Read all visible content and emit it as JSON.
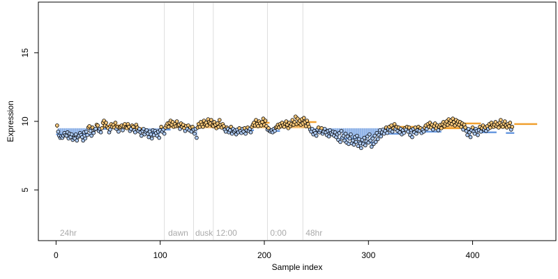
{
  "chart_data": {
    "type": "scatter",
    "xlabel": "Sample index",
    "ylabel": "Expression",
    "xlim": [
      -17,
      480
    ],
    "ylim": [
      1.3,
      18.7
    ],
    "x_ticks": [
      0,
      100,
      200,
      300,
      400
    ],
    "y_ticks": [
      5,
      10,
      15
    ],
    "baseline": 9.5,
    "colors": {
      "above": "#f0a030",
      "below": "#6a9ae0",
      "point_edge": "#000000",
      "divider": "#dddddd",
      "annotation": "#aaaaaa"
    },
    "dividers": [
      104,
      132,
      151,
      203,
      237
    ],
    "annotations": [
      {
        "label": "24hr",
        "x": 3
      },
      {
        "label": "dawn",
        "x": 107
      },
      {
        "label": "dusk",
        "x": 133
      },
      {
        "label": "12:00",
        "x": 153
      },
      {
        "label": "0:00",
        "x": 205
      },
      {
        "label": "48hr",
        "x": 239
      }
    ],
    "segments": [
      {
        "x0": 0,
        "x1": 34,
        "y": 9.05
      },
      {
        "x0": 34,
        "x1": 50,
        "y": 9.45
      },
      {
        "x0": 50,
        "x1": 68,
        "y": 9.7
      },
      {
        "x0": 68,
        "x1": 85,
        "y": 9.5
      },
      {
        "x0": 85,
        "x1": 100,
        "y": 9.15
      },
      {
        "x0": 100,
        "x1": 110,
        "y": 9.4
      },
      {
        "x0": 110,
        "x1": 125,
        "y": 9.75
      },
      {
        "x0": 125,
        "x1": 135,
        "y": 9.4
      },
      {
        "x0": 135,
        "x1": 153,
        "y": 9.85
      },
      {
        "x0": 153,
        "x1": 163,
        "y": 9.65
      },
      {
        "x0": 163,
        "x1": 190,
        "y": 9.35
      },
      {
        "x0": 190,
        "x1": 205,
        "y": 9.9
      },
      {
        "x0": 205,
        "x1": 215,
        "y": 9.3
      },
      {
        "x0": 215,
        "x1": 236,
        "y": 9.7
      },
      {
        "x0": 236,
        "x1": 250,
        "y": 9.95
      },
      {
        "x0": 250,
        "x1": 273,
        "y": 9.2
      },
      {
        "x0": 273,
        "x1": 290,
        "y": 8.75
      },
      {
        "x0": 290,
        "x1": 308,
        "y": 8.45
      },
      {
        "x0": 308,
        "x1": 330,
        "y": 9.1
      },
      {
        "x0": 330,
        "x1": 345,
        "y": 9.6
      },
      {
        "x0": 345,
        "x1": 370,
        "y": 9.25
      },
      {
        "x0": 370,
        "x1": 388,
        "y": 9.5
      },
      {
        "x0": 388,
        "x1": 408,
        "y": 9.85
      },
      {
        "x0": 408,
        "x1": 423,
        "y": 9.2
      },
      {
        "x0": 423,
        "x1": 432,
        "y": 9.55
      },
      {
        "x0": 432,
        "x1": 440,
        "y": 9.15
      },
      {
        "x0": 440,
        "x1": 462,
        "y": 9.8
      }
    ],
    "points": {
      "x_start": 1,
      "x_step": 1,
      "y": [
        9.7,
        9.25,
        8.95,
        8.8,
        8.9,
        8.8,
        8.95,
        9.15,
        9.0,
        8.95,
        9.2,
        8.75,
        9.1,
        8.85,
        9.05,
        8.65,
        8.8,
        8.75,
        9.05,
        8.6,
        8.85,
        8.95,
        9.15,
        9.0,
        8.85,
        8.6,
        9.2,
        8.75,
        9.25,
        9.0,
        9.55,
        9.65,
        9.3,
        8.95,
        9.55,
        9.15,
        9.4,
        9.45,
        9.75,
        9.7,
        9.3,
        9.45,
        9.2,
        9.5,
        9.9,
        10.05,
        9.7,
        9.9,
        9.6,
        9.5,
        9.2,
        9.4,
        9.8,
        9.6,
        9.75,
        9.55,
        9.9,
        9.45,
        9.6,
        9.25,
        9.55,
        9.6,
        9.7,
        9.35,
        9.65,
        9.8,
        9.55,
        9.5,
        9.8,
        9.6,
        9.3,
        9.45,
        9.7,
        9.6,
        9.35,
        9.2,
        9.75,
        9.55,
        9.3,
        9.45,
        9.2,
        8.95,
        9.3,
        9.45,
        9.05,
        9.25,
        9.35,
        9.1,
        8.85,
        9.25,
        9.05,
        8.75,
        9.35,
        9.0,
        9.3,
        9.15,
        8.95,
        9.25,
        8.8,
        9.35,
        9.6,
        9.25,
        9.4,
        9.1,
        9.55,
        9.7,
        9.85,
        9.6,
        9.9,
        10.05,
        9.75,
        9.95,
        9.6,
        9.8,
        9.65,
        10.0,
        9.7,
        9.75,
        9.45,
        9.85,
        9.6,
        9.75,
        9.5,
        9.3,
        9.65,
        9.45,
        9.7,
        9.35,
        9.55,
        9.25,
        9.6,
        9.4,
        9.1,
        9.45,
        8.8,
        9.55,
        9.8,
        9.6,
        9.95,
        9.75,
        9.6,
        10.05,
        9.8,
        9.9,
        9.7,
        10.15,
        9.95,
        9.85,
        10.1,
        9.7,
        9.65,
        9.95,
        9.75,
        9.5,
        9.85,
        9.6,
        10.1,
        9.75,
        9.55,
        9.8,
        9.65,
        9.4,
        9.25,
        9.55,
        9.45,
        9.2,
        9.35,
        9.6,
        9.1,
        9.45,
        9.25,
        9.35,
        9.05,
        9.4,
        9.2,
        9.5,
        9.3,
        9.15,
        9.45,
        9.25,
        9.5,
        9.1,
        9.35,
        9.55,
        9.3,
        9.45,
        9.2,
        9.6,
        9.75,
        9.9,
        9.7,
        10.1,
        9.8,
        9.65,
        10.0,
        9.85,
        9.7,
        9.95,
        10.2,
        9.75,
        10.05,
        9.65,
        9.4,
        9.5,
        9.3,
        9.25,
        9.35,
        9.2,
        9.45,
        9.3,
        9.55,
        9.6,
        9.75,
        9.55,
        9.8,
        9.65,
        9.9,
        9.7,
        9.6,
        9.85,
        10.0,
        9.75,
        9.5,
        9.9,
        9.65,
        9.8,
        10.1,
        9.75,
        9.95,
        10.35,
        9.8,
        10.2,
        9.9,
        10.05,
        9.75,
        10.15,
        9.85,
        10.25,
        9.95,
        9.65,
        10.05,
        9.8,
        9.6,
        9.4,
        9.25,
        9.45,
        9.05,
        9.3,
        9.15,
        8.95,
        9.4,
        9.55,
        9.2,
        9.35,
        9.5,
        9.1,
        9.25,
        9.45,
        9.2,
        9.0,
        9.3,
        8.9,
        9.35,
        9.15,
        9.05,
        9.25,
        8.95,
        9.2,
        8.85,
        9.05,
        8.65,
        9.15,
        8.5,
        9.3,
        8.8,
        8.95,
        8.6,
        9.1,
        8.45,
        8.9,
        8.35,
        8.75,
        9.05,
        8.4,
        8.6,
        8.3,
        8.85,
        8.5,
        8.95,
        8.2,
        8.7,
        8.4,
        8.05,
        8.65,
        8.35,
        8.8,
        8.25,
        8.55,
        8.9,
        8.45,
        9.05,
        8.6,
        8.15,
        8.75,
        8.35,
        8.95,
        8.5,
        9.15,
        8.7,
        9.0,
        9.35,
        8.9,
        9.2,
        9.4,
        9.1,
        9.3,
        9.55,
        9.15,
        9.45,
        9.6,
        9.35,
        9.7,
        9.25,
        9.5,
        9.8,
        9.45,
        9.6,
        9.3,
        9.55,
        9.2,
        9.45,
        9.05,
        9.35,
        9.15,
        9.5,
        9.4,
        9.6,
        9.25,
        9.55,
        9.0,
        9.35,
        8.85,
        9.45,
        9.2,
        9.55,
        9.1,
        9.35,
        9.6,
        9.3,
        9.5,
        9.15,
        9.4,
        9.25,
        9.55,
        9.7,
        9.45,
        9.8,
        9.6,
        9.9,
        9.55,
        9.75,
        9.4,
        9.65,
        9.85,
        9.5,
        9.7,
        9.35,
        9.6,
        9.75,
        9.5,
        9.8,
        9.95,
        9.65,
        9.85,
        10.0,
        9.75,
        10.15,
        9.9,
        10.05,
        9.8,
        10.2,
        9.95,
        9.7,
        10.1,
        9.85,
        10.0,
        9.75,
        9.95,
        9.6,
        9.85,
        9.4,
        9.75,
        9.55,
        9.3,
        9.0,
        9.45,
        9.2,
        8.85,
        9.35,
        9.55,
        9.25,
        9.1,
        9.45,
        9.3,
        9.0,
        9.35,
        9.6,
        9.25,
        9.5,
        9.7,
        9.4,
        9.55,
        9.3,
        9.65,
        9.45,
        9.8,
        9.55,
        9.9,
        9.7,
        9.6,
        9.75,
        9.95,
        9.65,
        9.8,
        9.55,
        9.9,
        10.1,
        9.75,
        9.6,
        9.85,
        10.0,
        9.7,
        9.55,
        9.8,
        9.65,
        9.9,
        9.4,
        9.6
      ]
    }
  }
}
